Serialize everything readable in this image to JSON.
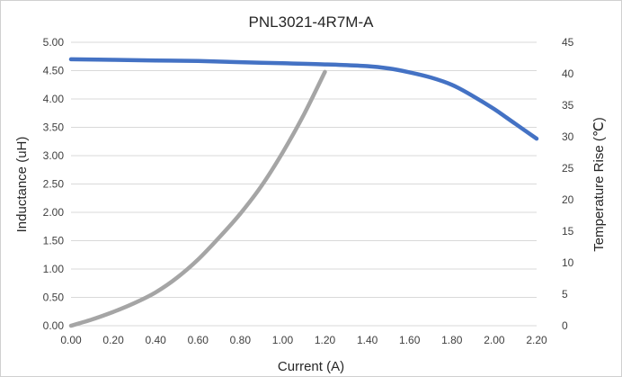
{
  "chart_data": {
    "type": "line",
    "title": "PNL3021-4R7M-A",
    "xlabel": "Current (A)",
    "ylabel": "Inductance (uH)",
    "y2label": "Temperature Rise (℃)",
    "xlim": [
      0,
      2.2
    ],
    "ylim": [
      0,
      5
    ],
    "y2lim": [
      0,
      45
    ],
    "x_ticks": [
      "0.00",
      "0.20",
      "0.40",
      "0.60",
      "0.80",
      "1.00",
      "1.20",
      "1.40",
      "1.60",
      "1.80",
      "2.00",
      "2.20"
    ],
    "y_ticks": [
      "0.00",
      "0.50",
      "1.00",
      "1.50",
      "2.00",
      "2.50",
      "3.00",
      "3.50",
      "4.00",
      "4.50",
      "5.00"
    ],
    "y2_ticks": [
      "0",
      "5",
      "10",
      "15",
      "20",
      "25",
      "30",
      "35",
      "40",
      "45"
    ],
    "grid": true,
    "series": [
      {
        "axis": "left",
        "color": "#4472c4",
        "x": [
          0,
          0.2,
          0.4,
          0.6,
          0.8,
          1.0,
          1.2,
          1.4,
          1.5,
          1.6,
          1.7,
          1.8,
          1.9,
          2.0,
          2.1,
          2.2
        ],
        "values": [
          4.7,
          4.69,
          4.68,
          4.67,
          4.65,
          4.63,
          4.61,
          4.58,
          4.54,
          4.47,
          4.38,
          4.25,
          4.05,
          3.82,
          3.56,
          3.3
        ]
      },
      {
        "axis": "right",
        "color": "#a5a5a5",
        "x": [
          0,
          0.1,
          0.2,
          0.3,
          0.4,
          0.5,
          0.6,
          0.7,
          0.8,
          0.9,
          1.0,
          1.1,
          1.2
        ],
        "values": [
          0,
          1.0,
          2.2,
          3.6,
          5.3,
          7.6,
          10.5,
          14.0,
          17.8,
          22.2,
          27.5,
          33.5,
          40.3
        ]
      }
    ]
  }
}
